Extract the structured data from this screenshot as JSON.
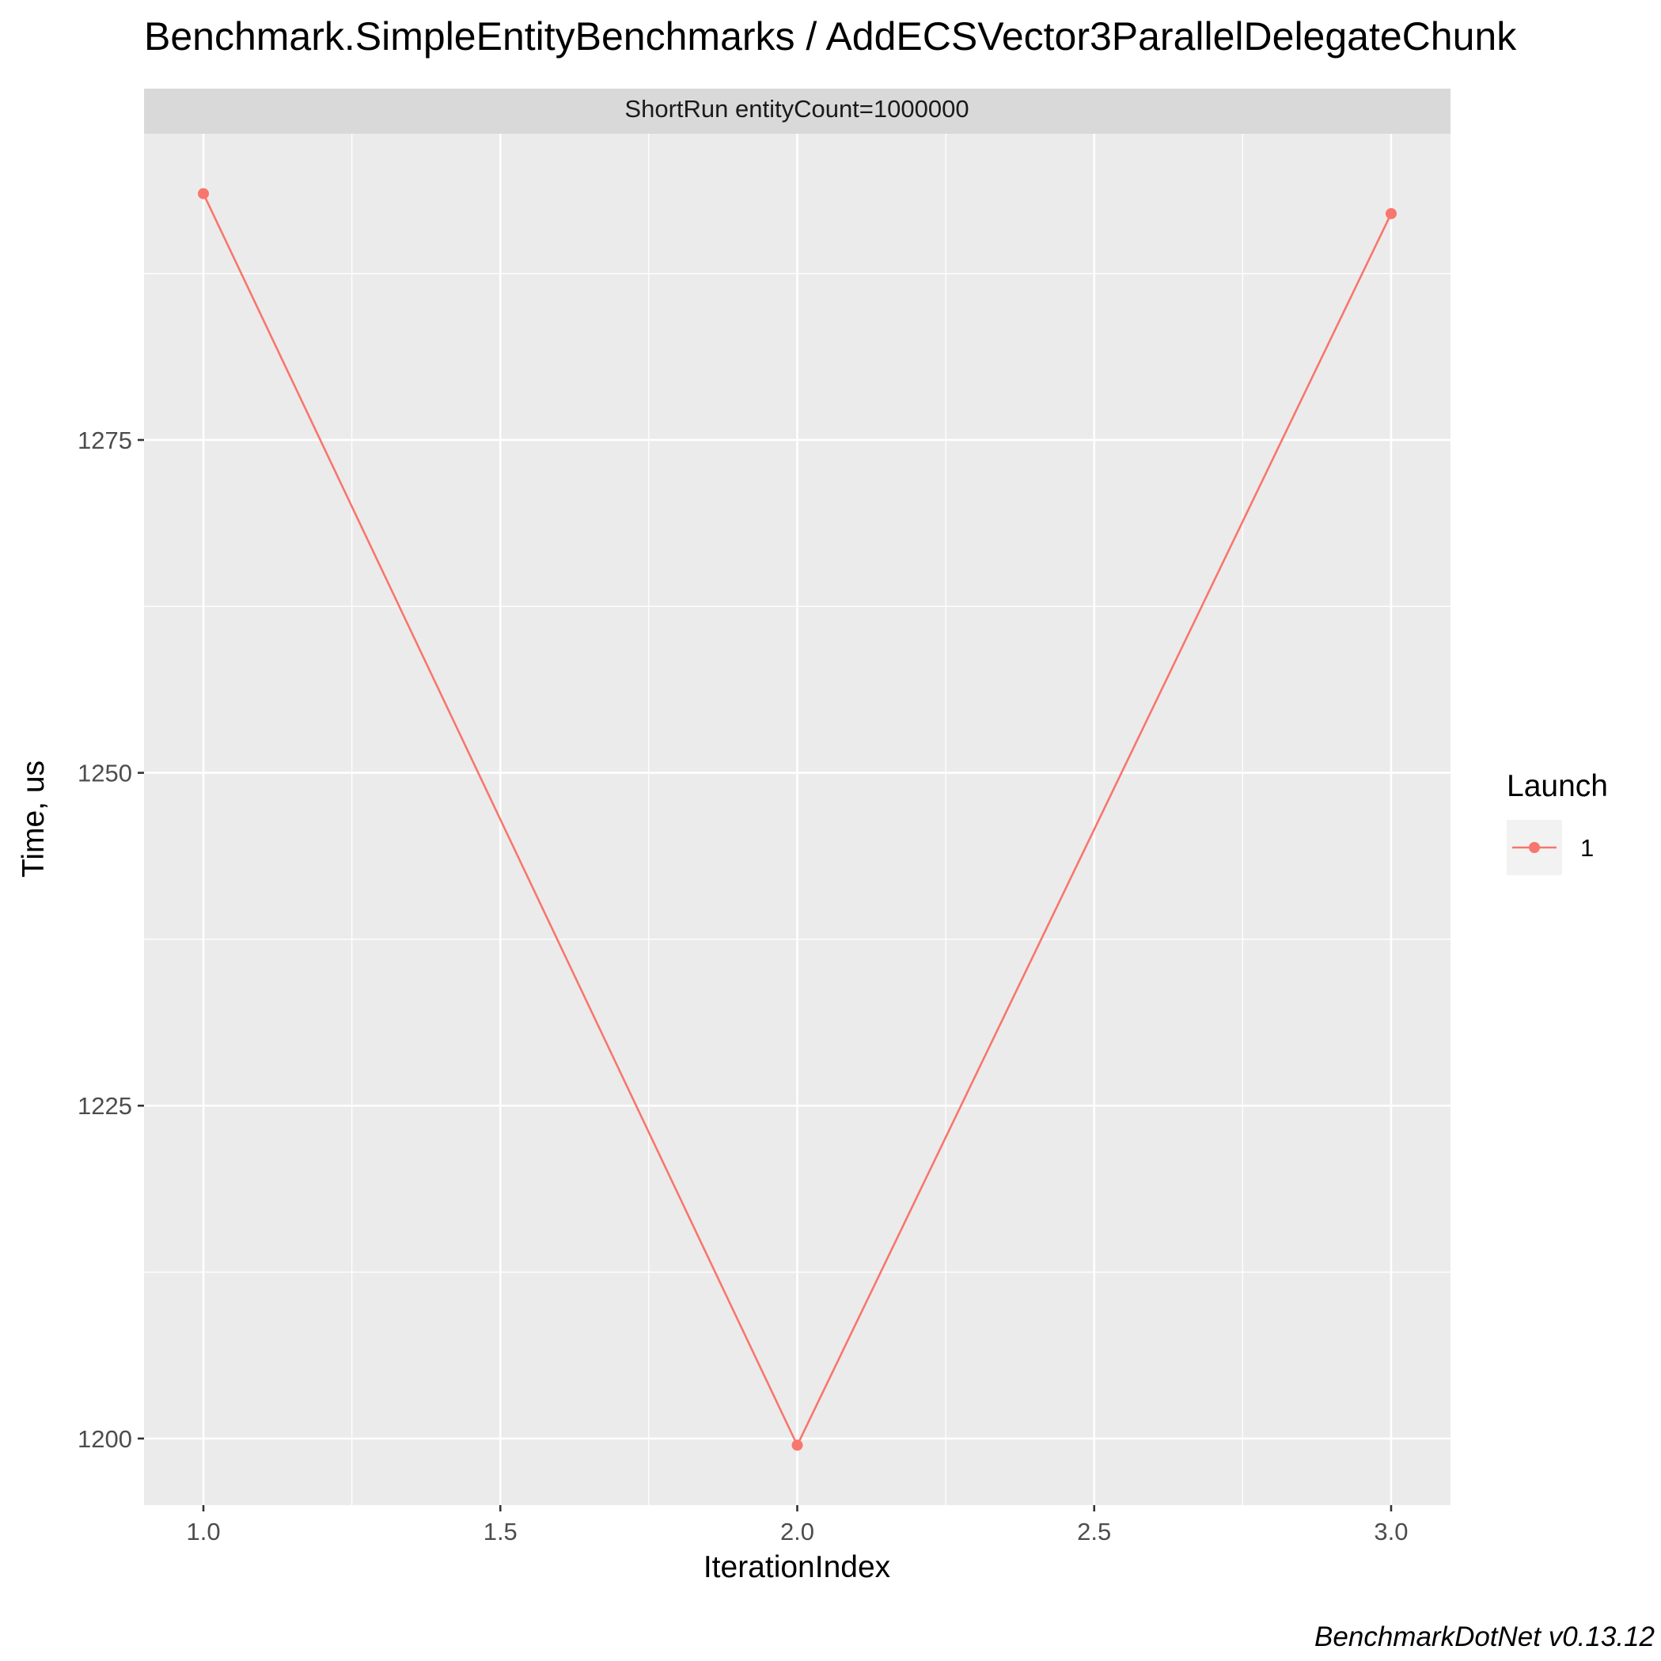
{
  "chart_data": {
    "type": "line",
    "title": "Benchmark.SimpleEntityBenchmarks / AddECSVector3ParallelDelegateChunk",
    "facet_label": "ShortRun entityCount=1000000",
    "xlabel": "IterationIndex",
    "ylabel": "Time, us",
    "x_ticks": [
      "1.0",
      "1.5",
      "2.0",
      "2.5",
      "3.0"
    ],
    "y_ticks": [
      "1200",
      "1225",
      "1250",
      "1275"
    ],
    "xlim": [
      0.9,
      3.1
    ],
    "ylim": [
      1195,
      1298
    ],
    "grid": true,
    "legend": {
      "title": "Launch",
      "placement": "right"
    },
    "series": [
      {
        "name": "1",
        "color": "#F8766D",
        "x": [
          1,
          2,
          3
        ],
        "y": [
          1293.5,
          1199.5,
          1292.0
        ]
      }
    ],
    "caption": "BenchmarkDotNet v0.13.12"
  }
}
